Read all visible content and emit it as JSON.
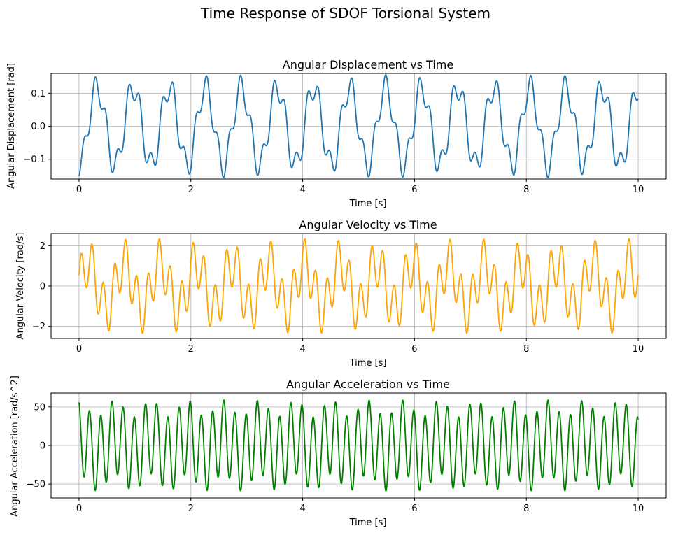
{
  "figure_title": "Time Response of SDOF Torsional System",
  "chart_data": [
    {
      "type": "line",
      "title": "Angular Displacement vs Time",
      "xlabel": "Time [s]",
      "ylabel": "Angular Displacement [rad]",
      "xlim": [
        -0.5,
        10.5
      ],
      "ylim": [
        -0.16,
        0.16
      ],
      "xticks": [
        0,
        2,
        4,
        6,
        8,
        10
      ],
      "yticks": [
        -0.1,
        0.0,
        0.1
      ],
      "xtick_labels": [
        "0",
        "2",
        "4",
        "6",
        "8",
        "10"
      ],
      "ytick_labels": [
        "−0.1",
        "0.0",
        "0.1"
      ],
      "grid": true,
      "color": "#1f77b4",
      "series": [
        {
          "x_range": [
            0,
            10
          ],
          "points": 1000,
          "model": {
            "terms": [
              {
                "amp": 0.118,
                "freq_hz": 1.55,
                "phase": -1.5708
              },
              {
                "amp": 0.038,
                "freq_hz": 5.0,
                "phase": -1.1
              }
            ]
          }
        }
      ]
    },
    {
      "type": "line",
      "title": "Angular Velocity vs Time",
      "xlabel": "Time [s]",
      "ylabel": "Angular Velocity [rad/s]",
      "xlim": [
        -0.5,
        10.5
      ],
      "ylim": [
        -2.6,
        2.6
      ],
      "xticks": [
        0,
        2,
        4,
        6,
        8,
        10
      ],
      "yticks": [
        -2,
        0,
        2
      ],
      "xtick_labels": [
        "0",
        "2",
        "4",
        "6",
        "8",
        "10"
      ],
      "ytick_labels": [
        "−2",
        "0",
        "2"
      ],
      "grid": true,
      "color": "#ffa500",
      "series": [
        {
          "x_range": [
            0,
            10
          ],
          "points": 1000,
          "model": {
            "terms": [
              {
                "amp": 1.15,
                "freq_hz": 1.55,
                "phase": 0.0
              },
              {
                "amp": 1.2,
                "freq_hz": 5.0,
                "phase": 0.47
              }
            ]
          }
        }
      ]
    },
    {
      "type": "line",
      "title": "Angular Acceleration vs Time",
      "xlabel": "Time [s]",
      "ylabel": "Angular Acceleration [rad/s^2]",
      "xlim": [
        -0.5,
        10.5
      ],
      "ylim": [
        -68,
        68
      ],
      "xticks": [
        0,
        2,
        4,
        6,
        8,
        10
      ],
      "yticks": [
        -50,
        0,
        50
      ],
      "xtick_labels": [
        "0",
        "2",
        "4",
        "6",
        "8",
        "10"
      ],
      "ytick_labels": [
        "−50",
        "0",
        "50"
      ],
      "grid": true,
      "color": "#008000",
      "series": [
        {
          "x_range": [
            0,
            10
          ],
          "points": 1200,
          "model": {
            "terms": [
              {
                "amp": 11.0,
                "freq_hz": 1.55,
                "phase": 1.5708
              },
              {
                "amp": 38.0,
                "freq_hz": 5.0,
                "phase": 2.04
              },
              {
                "amp": 11.0,
                "freq_hz": 5.0,
                "phase": 1.5708
              }
            ]
          }
        }
      ]
    }
  ]
}
